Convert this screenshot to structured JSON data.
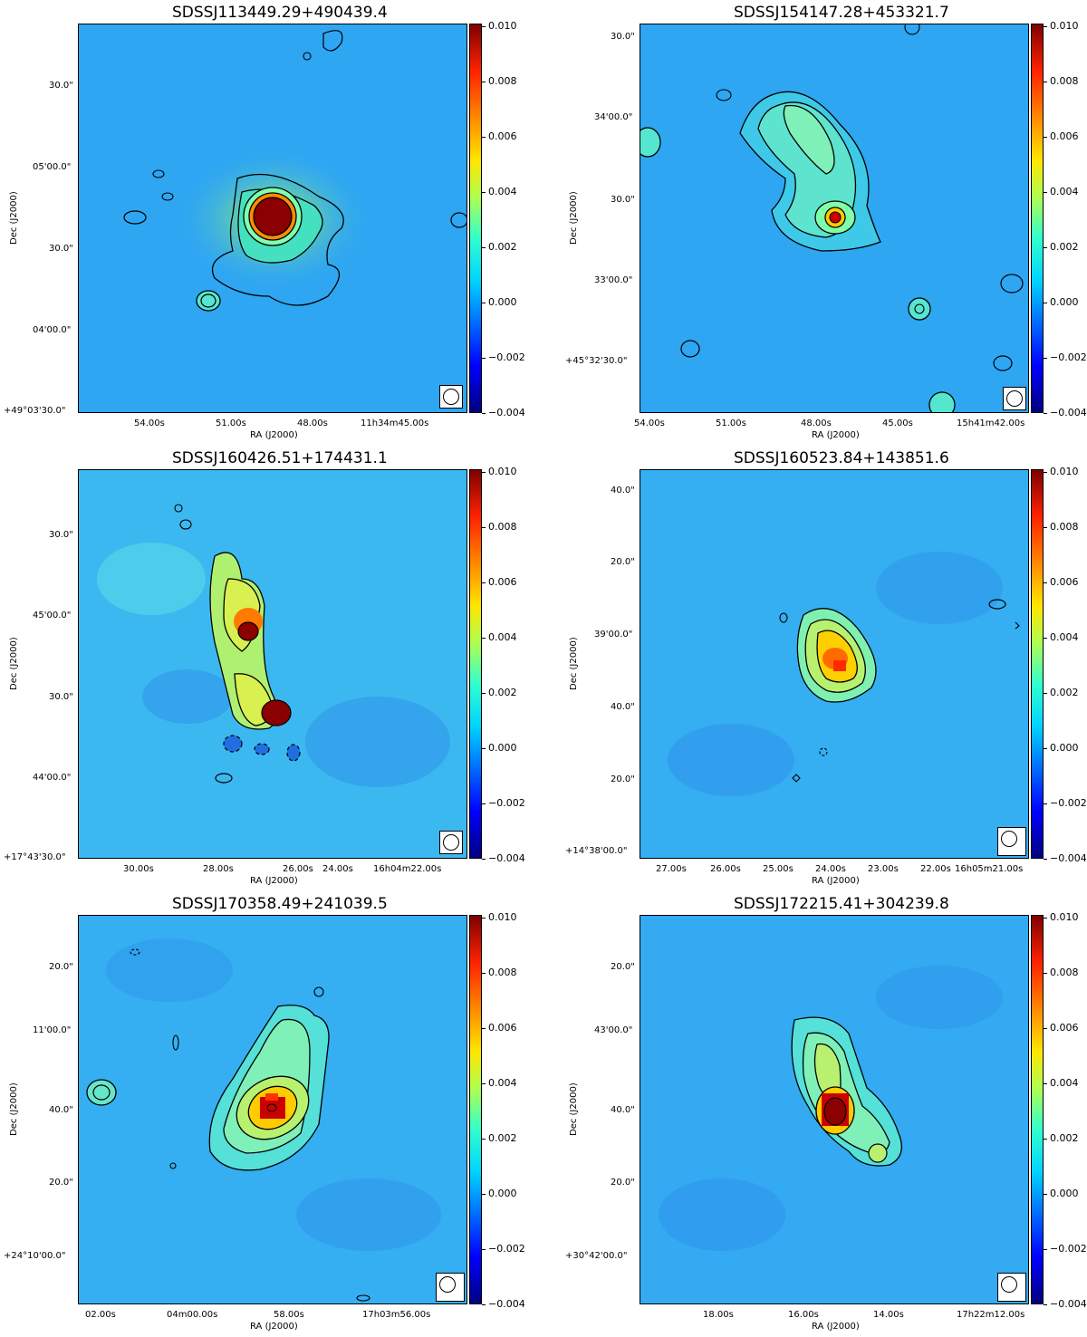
{
  "colorbar": {
    "ticks": [
      "0.010",
      "0.008",
      "0.006",
      "0.004",
      "0.002",
      "0.000",
      "−0.002",
      "−0.004"
    ]
  },
  "axes": {
    "xlabel": "RA (J2000)",
    "ylabel": "Dec (J2000)"
  },
  "panels": [
    {
      "title": "SDSSJ113449.29+490439.4",
      "yticks": [
        "30.0\"",
        "05'00.0\"",
        "30.0\"",
        "04'00.0\"",
        "+49°03'30.0\""
      ],
      "xticks": [
        "54.00s",
        "51.00s",
        "48.00s",
        "11h34m45.00s"
      ]
    },
    {
      "title": "SDSSJ154147.28+453321.7",
      "yticks": [
        "30.0\"",
        "34'00.0\"",
        "30.0\"",
        "33'00.0\"",
        "+45°32'30.0\""
      ],
      "xticks": [
        "54.00s",
        "51.00s",
        "48.00s",
        "45.00s",
        "15h41m42.00s"
      ]
    },
    {
      "title": "SDSSJ160426.51+174431.1",
      "yticks": [
        "30.0\"",
        "45'00.0\"",
        "30.0\"",
        "44'00.0\"",
        "+17°43'30.0\""
      ],
      "xticks": [
        "30.00s",
        "28.00s",
        "26.00s",
        "24.00s",
        "16h04m22.00s"
      ]
    },
    {
      "title": "SDSSJ160523.84+143851.6",
      "yticks": [
        "40.0\"",
        "20.0\"",
        "39'00.0\"",
        "40.0\"",
        "20.0\"",
        "+14°38'00.0\""
      ],
      "xticks": [
        "27.00s",
        "26.00s",
        "25.00s",
        "24.00s",
        "23.00s",
        "22.00s",
        "16h05m21.00s"
      ]
    },
    {
      "title": "SDSSJ170358.49+241039.5",
      "yticks": [
        "20.0\"",
        "11'00.0\"",
        "40.0\"",
        "20.0\"",
        "+24°10'00.0\""
      ],
      "xticks": [
        "02.00s",
        "04m00.00s",
        "58.00s",
        "17h03m56.00s"
      ]
    },
    {
      "title": "SDSSJ172215.41+304239.8",
      "yticks": [
        "20.0\"",
        "43'00.0\"",
        "40.0\"",
        "20.0\"",
        "+30°42'00.0\""
      ],
      "xticks": [
        "18.00s",
        "16.00s",
        "14.00s",
        "17h22m12.00s"
      ]
    }
  ]
}
